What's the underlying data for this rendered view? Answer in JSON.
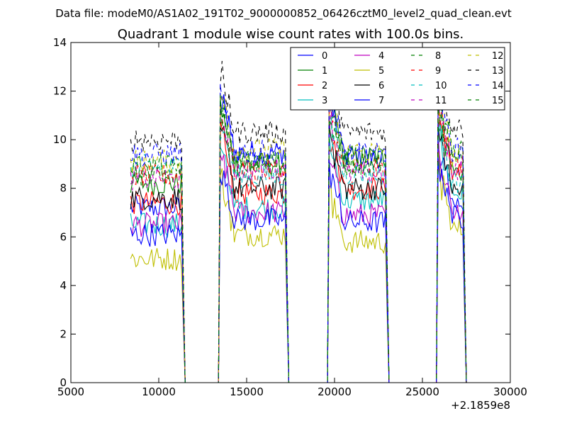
{
  "figure": {
    "suptitle": "Data file: modeM0/AS1A02_191T02_9000000852_06426cztM0_level2_quad_clean.evt"
  },
  "chart_data": {
    "type": "line",
    "title": "Quadrant 1 module wise count rates with 100.0s bins.",
    "xlabel": "",
    "ylabel": "",
    "x_offset_label": "+2.1859e8",
    "xlim": [
      5000,
      30000
    ],
    "ylim": [
      0,
      14
    ],
    "x_ticks": [
      5000,
      10000,
      15000,
      20000,
      25000,
      30000
    ],
    "x_tick_labels": [
      "5000",
      "10000",
      "15000",
      "20000",
      "25000",
      "30000"
    ],
    "y_ticks": [
      0,
      2,
      4,
      6,
      8,
      10,
      12,
      14
    ],
    "y_tick_labels": [
      "0",
      "2",
      "4",
      "6",
      "8",
      "10",
      "12",
      "14"
    ],
    "grid": false,
    "legend_position": "top-right",
    "legend_columns": 4,
    "segments": [
      {
        "start": 8400,
        "end": 11500,
        "peak_start": false
      },
      {
        "start": 13500,
        "end": 17400,
        "peak_start": true
      },
      {
        "start": 19700,
        "end": 23100,
        "peak_start": true
      },
      {
        "start": 25900,
        "end": 27500,
        "peak_start": true
      }
    ],
    "bin_width": 100,
    "series": [
      {
        "name": "0",
        "color": "#0000ff",
        "dashed": false,
        "levels": [
          7.2,
          9.5,
          9.3,
          7.4
        ]
      },
      {
        "name": "1",
        "color": "#008000",
        "dashed": false,
        "levels": [
          8.2,
          9.0,
          9.3,
          8.7
        ]
      },
      {
        "name": "2",
        "color": "#ff0000",
        "dashed": false,
        "levels": [
          7.4,
          7.8,
          8.0,
          8.7
        ]
      },
      {
        "name": "3",
        "color": "#00bfbf",
        "dashed": false,
        "levels": [
          6.5,
          7.2,
          7.5,
          7.8
        ]
      },
      {
        "name": "4",
        "color": "#bf00bf",
        "dashed": false,
        "levels": [
          6.5,
          7.0,
          6.9,
          7.1
        ]
      },
      {
        "name": "5",
        "color": "#bfbf00",
        "dashed": false,
        "levels": [
          5.1,
          6.1,
          5.8,
          6.3
        ]
      },
      {
        "name": "6",
        "color": "#000000",
        "dashed": false,
        "levels": [
          7.6,
          8.0,
          8.0,
          7.9
        ]
      },
      {
        "name": "7",
        "color": "#0000ff",
        "dashed": false,
        "levels": [
          6.1,
          6.7,
          6.6,
          6.8
        ]
      },
      {
        "name": "8",
        "color": "#008000",
        "dashed": true,
        "levels": [
          8.6,
          9.1,
          9.0,
          9.5
        ]
      },
      {
        "name": "9",
        "color": "#ff0000",
        "dashed": true,
        "levels": [
          8.5,
          8.7,
          8.8,
          8.9
        ]
      },
      {
        "name": "10",
        "color": "#00bfbf",
        "dashed": true,
        "levels": [
          8.9,
          8.5,
          8.6,
          8.3
        ]
      },
      {
        "name": "11",
        "color": "#bf00bf",
        "dashed": true,
        "levels": [
          8.4,
          8.8,
          8.6,
          8.8
        ]
      },
      {
        "name": "12",
        "color": "#bfbf00",
        "dashed": true,
        "levels": [
          9.1,
          9.6,
          9.5,
          9.3
        ]
      },
      {
        "name": "13",
        "color": "#000000",
        "dashed": true,
        "levels": [
          10.0,
          10.3,
          10.3,
          10.5
        ]
      },
      {
        "name": "14",
        "color": "#0000ff",
        "dashed": true,
        "levels": [
          9.4,
          9.5,
          9.4,
          9.6
        ]
      },
      {
        "name": "15",
        "color": "#008000",
        "dashed": true,
        "levels": [
          8.9,
          9.0,
          9.1,
          9.1
        ]
      }
    ]
  }
}
